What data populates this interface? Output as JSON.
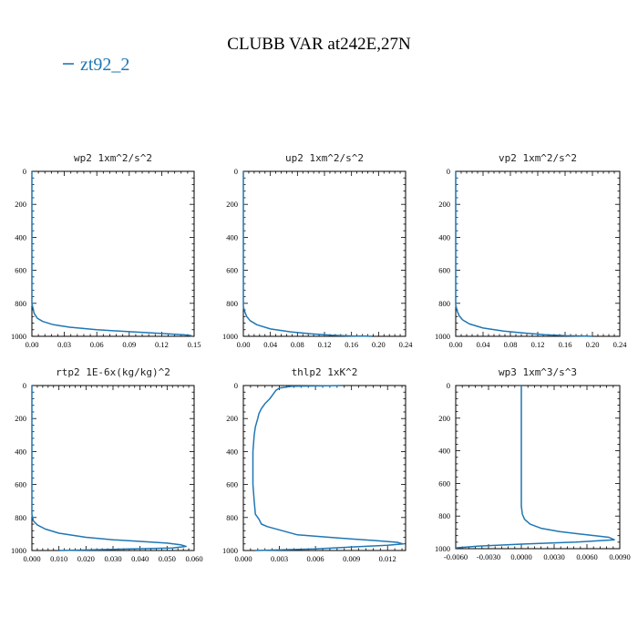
{
  "figure": {
    "title": "CLUBB VAR at242E,27N",
    "legend": {
      "label": "zt92_2",
      "color": "#1f77b4"
    }
  },
  "chart_data": [
    {
      "type": "line",
      "title": "wp2  1xm^2/s^2",
      "xlim": [
        0,
        0.15
      ],
      "ylim": [
        1000,
        0
      ],
      "xticks": [
        "0.00",
        "0.03",
        "0.06",
        "0.09",
        "0.12",
        "0.15"
      ],
      "yticks": [
        "0",
        "200",
        "400",
        "600",
        "800",
        "1000"
      ],
      "series": [
        {
          "name": "zt92_2",
          "color": "#1f77b4",
          "x": [
            0,
            0,
            0,
            0.002,
            0.005,
            0.01,
            0.02,
            0.035,
            0.06,
            0.09,
            0.12,
            0.14,
            0.147,
            0.148
          ],
          "y": [
            0,
            400,
            800,
            860,
            890,
            910,
            930,
            945,
            960,
            972,
            983,
            990,
            995,
            1000
          ]
        }
      ]
    },
    {
      "type": "line",
      "title": "up2  1xm^2/s^2",
      "xlim": [
        0,
        0.24
      ],
      "ylim": [
        1000,
        0
      ],
      "xticks": [
        "0.00",
        "0.04",
        "0.08",
        "0.12",
        "0.16",
        "0.20",
        "0.24"
      ],
      "yticks": [
        "0",
        "200",
        "400",
        "600",
        "800",
        "1000"
      ],
      "series": [
        {
          "name": "zt92_2",
          "color": "#1f77b4",
          "x": [
            0,
            0,
            0.002,
            0.005,
            0.01,
            0.02,
            0.04,
            0.07,
            0.1,
            0.13,
            0.16,
            0.18,
            0.19
          ],
          "y": [
            0,
            820,
            850,
            880,
            905,
            930,
            955,
            973,
            985,
            993,
            998,
            999,
            1000
          ]
        }
      ]
    },
    {
      "type": "line",
      "title": "vp2  1xm^2/s^2",
      "xlim": [
        0,
        0.24
      ],
      "ylim": [
        1000,
        0
      ],
      "xticks": [
        "0.00",
        "0.04",
        "0.08",
        "0.12",
        "0.16",
        "0.20",
        "0.24"
      ],
      "yticks": [
        "0",
        "200",
        "400",
        "600",
        "800",
        "1000"
      ],
      "series": [
        {
          "name": "zt92_2",
          "color": "#1f77b4",
          "x": [
            0,
            0,
            0.002,
            0.005,
            0.01,
            0.02,
            0.04,
            0.07,
            0.1,
            0.13,
            0.16,
            0.19,
            0.2
          ],
          "y": [
            0,
            810,
            845,
            875,
            900,
            925,
            950,
            968,
            980,
            990,
            996,
            999,
            1000
          ]
        }
      ]
    },
    {
      "type": "line",
      "title": "rtp2  1E-6x(kg/kg)^2",
      "xlim": [
        0,
        0.06
      ],
      "ylim": [
        1000,
        0
      ],
      "xticks": [
        "0.000",
        "0.010",
        "0.020",
        "0.030",
        "0.040",
        "0.050",
        "0.060"
      ],
      "yticks": [
        "0",
        "200",
        "400",
        "600",
        "800",
        "1000"
      ],
      "series": [
        {
          "name": "zt92_2",
          "color": "#1f77b4",
          "x": [
            0,
            0,
            0.0005,
            0.002,
            0.005,
            0.01,
            0.02,
            0.03,
            0.04,
            0.05,
            0.055,
            0.057,
            0.052,
            0.03,
            0.01
          ],
          "y": [
            0,
            780,
            820,
            845,
            870,
            895,
            920,
            935,
            945,
            955,
            965,
            975,
            985,
            993,
            1000
          ]
        }
      ]
    },
    {
      "type": "line",
      "title": "thlp2  1xK^2",
      "xlim": [
        0,
        0.0135
      ],
      "ylim": [
        1000,
        0
      ],
      "xticks": [
        "0.000",
        "0.003",
        "0.006",
        "0.009",
        "0.012"
      ],
      "yticks": [
        "0",
        "200",
        "400",
        "600",
        "800",
        "1000"
      ],
      "series": [
        {
          "name": "zt92_2",
          "color": "#1f77b4",
          "x": [
            0.0082,
            0.004,
            0.003,
            0.0027,
            0.0025,
            0.0022,
            0.0018,
            0.0015,
            0.0013,
            0.0012,
            0.001,
            0.0009,
            0.0008,
            0.0008,
            0.0008,
            0.0009,
            0.001,
            0.0013,
            0.0015,
            0.002,
            0.0045,
            0.008,
            0.011,
            0.0128,
            0.0133,
            0.012,
            0.006,
            0.001
          ],
          "y": [
            0,
            5,
            15,
            30,
            50,
            80,
            110,
            140,
            170,
            200,
            250,
            300,
            400,
            500,
            600,
            700,
            780,
            810,
            840,
            855,
            905,
            925,
            940,
            950,
            960,
            968,
            990,
            1000
          ]
        }
      ]
    },
    {
      "type": "line",
      "title": "wp3  1xm^3/s^3",
      "xlim": [
        -0.006,
        0.009
      ],
      "ylim": [
        1000,
        0
      ],
      "xticks": [
        "-0.0060",
        "-0.0030",
        "0.0000",
        "0.0030",
        "0.0060",
        "0.0090"
      ],
      "yticks": [
        "0",
        "200",
        "400",
        "600",
        "800",
        "1000"
      ],
      "series": [
        {
          "name": "zt92_2",
          "color": "#1f77b4",
          "x": [
            0,
            0,
            0,
            0.0001,
            0.0003,
            0.0008,
            0.0018,
            0.0035,
            0.006,
            0.008,
            0.0085,
            0.005,
            0,
            -0.004,
            -0.006
          ],
          "y": [
            0,
            400,
            740,
            790,
            820,
            850,
            875,
            895,
            915,
            930,
            945,
            960,
            972,
            985,
            995
          ]
        }
      ]
    }
  ]
}
